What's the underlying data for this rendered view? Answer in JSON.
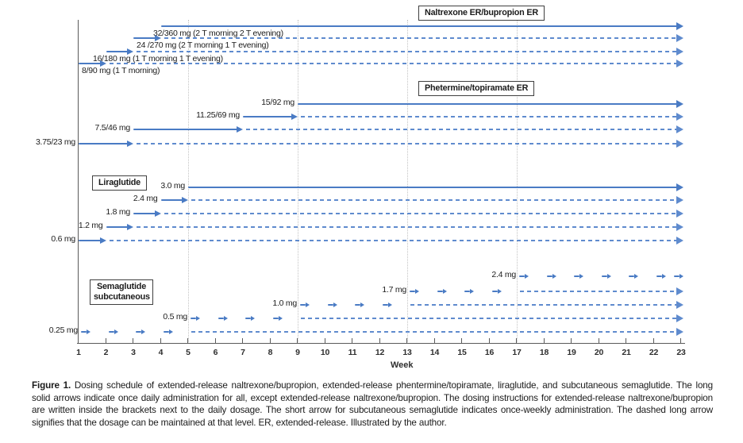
{
  "figure": {
    "caption_label": "Figure 1.",
    "caption_text": "Dosing schedule of extended-release naltrexone/bupropion, extended-release phentermine/topiramate, liraglutide, and subcutaneous semaglutide. The long solid arrows indicate once daily administration for all, except extended-release naltrexone/bupropion. The dosing instructions for extended-release naltrexone/bupropion are written inside the brackets next to the daily dosage. The short arrow for subcutaneous semaglutide indicates once-weekly administration. The dashed long arrow signifies that the dosage can be maintained at that level. ER, extended-release. Illustrated by the author."
  },
  "colors": {
    "solid_arrow": "#4a7bc4",
    "dashed_arrow": "#5f8bce",
    "axis": "#5a5a5a",
    "gridline": "#c3c3c3",
    "box_border": "#3f3f3f",
    "text": "#1c1c1c"
  },
  "chart_data": {
    "type": "line",
    "subtype": "dosing-schedule-timeline",
    "axis": {
      "label": "Week",
      "ticks": [
        "1",
        "2",
        "3",
        "4",
        "5",
        "6",
        "7",
        "8",
        "9",
        "10",
        "11",
        "12",
        "13",
        "14",
        "15",
        "16",
        "17",
        "18",
        "19",
        "20",
        "21",
        "22",
        "23"
      ],
      "range": [
        1,
        23
      ],
      "gridline_weeks": [
        5,
        9,
        13,
        17
      ],
      "grid": "vertical-dotted"
    },
    "legend_note": "solid arrow = once daily administration; short arrow = once-weekly administration (semaglutide); dashed arrow = dosage can be maintained at that level",
    "groups": [
      {
        "name": "Naltrexone ER/bupropion ER",
        "rows": [
          {
            "label": "32/360 mg (2 T morning 2 T evening)",
            "solid_weeks": [
              4,
              23
            ],
            "dashed_weeks": null
          },
          {
            "label": "24 /270 mg (2 T morning 1 T evening)",
            "solid_weeks": [
              3,
              4
            ],
            "dashed_weeks": [
              4,
              23
            ]
          },
          {
            "label": "16/180 mg (1 T morning 1 T evening)",
            "solid_weeks": [
              2,
              3
            ],
            "dashed_weeks": [
              3,
              23
            ]
          },
          {
            "label": "8/90 mg (1 T morning)",
            "solid_weeks": [
              1,
              2
            ],
            "dashed_weeks": [
              2,
              23
            ]
          }
        ]
      },
      {
        "name": "Phetermine/topiramate ER",
        "rows": [
          {
            "label": "15/92 mg",
            "solid_weeks": [
              9,
              23
            ],
            "dashed_weeks": null
          },
          {
            "label": "11.25/69 mg",
            "solid_weeks": [
              7,
              9
            ],
            "dashed_weeks": [
              9,
              23
            ]
          },
          {
            "label": "7.5/46 mg",
            "solid_weeks": [
              3,
              7
            ],
            "dashed_weeks": [
              7,
              23
            ]
          },
          {
            "label": "3.75/23 mg",
            "solid_weeks": [
              1,
              3
            ],
            "dashed_weeks": [
              3,
              23
            ]
          }
        ]
      },
      {
        "name": "Liraglutide",
        "rows": [
          {
            "label": "3.0 mg",
            "solid_weeks": [
              5,
              23
            ],
            "dashed_weeks": null
          },
          {
            "label": "2.4 mg",
            "solid_weeks": [
              4,
              5
            ],
            "dashed_weeks": [
              5,
              23
            ]
          },
          {
            "label": "1.8 mg",
            "solid_weeks": [
              3,
              4
            ],
            "dashed_weeks": [
              4,
              23
            ]
          },
          {
            "label": "1.2 mg",
            "solid_weeks": [
              2,
              3
            ],
            "dashed_weeks": [
              3,
              23
            ]
          },
          {
            "label": "0.6 mg",
            "solid_weeks": [
              1,
              2
            ],
            "dashed_weeks": [
              2,
              23
            ]
          }
        ]
      },
      {
        "name": "Semaglutide subcutaneous",
        "rows": [
          {
            "label": "2.4 mg",
            "weekly_arrow_weeks": [
              17,
              18,
              19,
              20,
              21,
              22,
              23
            ],
            "dashed_weeks": null
          },
          {
            "label": "1.7 mg",
            "weekly_arrow_weeks": [
              13,
              14,
              15,
              16
            ],
            "dashed_weeks": [
              17,
              23
            ]
          },
          {
            "label": "1.0 mg",
            "weekly_arrow_weeks": [
              9,
              10,
              11,
              12
            ],
            "dashed_weeks": [
              13,
              23
            ]
          },
          {
            "label": "0.5 mg",
            "weekly_arrow_weeks": [
              5,
              6,
              7,
              8
            ],
            "dashed_weeks": [
              9,
              23
            ]
          },
          {
            "label": "0.25 mg",
            "weekly_arrow_weeks": [
              1,
              2,
              3,
              4
            ],
            "dashed_weeks": [
              5,
              23
            ]
          }
        ]
      }
    ]
  }
}
